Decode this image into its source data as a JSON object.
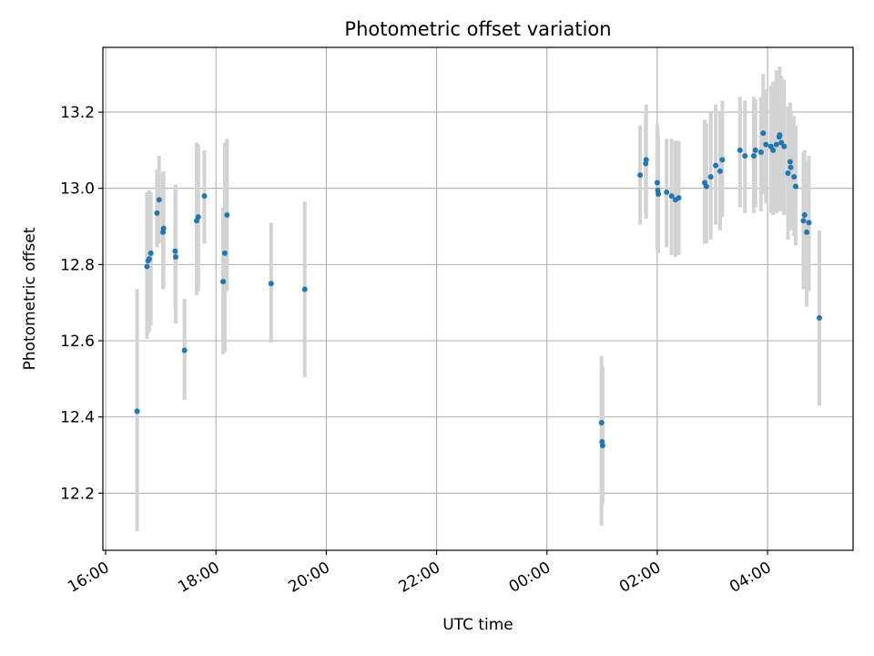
{
  "chart_data": {
    "type": "scatter",
    "title": "Photometric offset variation",
    "xlabel": "UTC time",
    "ylabel": "Photometric offset",
    "xlim_hours": [
      15.95,
      29.55
    ],
    "ylim": [
      12.05,
      13.37
    ],
    "grid": true,
    "legend": "none",
    "x_ticks": [
      {
        "hour": 16,
        "label": "16:00"
      },
      {
        "hour": 18,
        "label": "18:00"
      },
      {
        "hour": 20,
        "label": "20:00"
      },
      {
        "hour": 22,
        "label": "22:00"
      },
      {
        "hour": 24,
        "label": "00:00"
      },
      {
        "hour": 26,
        "label": "02:00"
      },
      {
        "hour": 28,
        "label": "04:00"
      }
    ],
    "y_ticks": [
      {
        "value": 12.2,
        "label": "12.2"
      },
      {
        "value": 12.4,
        "label": "12.4"
      },
      {
        "value": 12.6,
        "label": "12.6"
      },
      {
        "value": 12.8,
        "label": "12.8"
      },
      {
        "value": 13.0,
        "label": "13.0"
      },
      {
        "value": 13.2,
        "label": "13.2"
      }
    ],
    "series": [
      {
        "name": "Photometric offset",
        "marker_color": "#1f77b4",
        "errorbar_color": "#d3d3d3",
        "x_hours": [
          16.57,
          16.75,
          16.77,
          16.79,
          16.82,
          16.93,
          16.97,
          17.04,
          17.05,
          17.26,
          17.27,
          17.43,
          17.65,
          17.68,
          17.79,
          18.13,
          18.16,
          18.2,
          19.0,
          19.61,
          24.99,
          25.0,
          25.01,
          25.69,
          25.79,
          25.8,
          26.0,
          26.01,
          26.02,
          26.17,
          26.26,
          26.33,
          26.39,
          26.86,
          26.89,
          26.97,
          27.06,
          27.14,
          27.18,
          27.5,
          27.59,
          27.75,
          27.78,
          27.88,
          27.92,
          27.97,
          28.06,
          28.1,
          28.16,
          28.21,
          28.22,
          28.25,
          28.3,
          28.37,
          28.41,
          28.42,
          28.48,
          28.51,
          28.65,
          28.67,
          28.71,
          28.75,
          28.94
        ],
        "y_values": [
          12.415,
          12.795,
          12.81,
          12.815,
          12.83,
          12.935,
          12.97,
          12.885,
          12.895,
          12.835,
          12.82,
          12.575,
          12.915,
          12.925,
          12.98,
          12.755,
          12.83,
          12.93,
          12.75,
          12.735,
          12.385,
          12.335,
          12.325,
          13.035,
          13.065,
          13.075,
          13.015,
          12.995,
          12.985,
          12.99,
          12.98,
          12.97,
          12.975,
          13.015,
          13.005,
          13.03,
          13.06,
          13.045,
          13.075,
          13.1,
          13.085,
          13.085,
          13.1,
          13.095,
          13.145,
          13.115,
          13.11,
          13.1,
          13.115,
          13.135,
          13.14,
          13.12,
          13.11,
          13.04,
          13.07,
          13.055,
          13.03,
          13.005,
          12.915,
          12.93,
          12.885,
          12.91,
          12.66
        ],
        "y_err_low": [
          12.1,
          12.605,
          12.62,
          12.625,
          12.64,
          12.845,
          12.855,
          12.735,
          12.74,
          12.685,
          12.645,
          12.445,
          12.72,
          12.73,
          12.855,
          12.565,
          12.57,
          12.73,
          12.595,
          12.505,
          12.115,
          12.17,
          12.175,
          12.905,
          12.935,
          12.92,
          12.84,
          12.83,
          12.83,
          12.845,
          12.825,
          12.82,
          12.825,
          12.855,
          12.855,
          12.865,
          12.905,
          12.89,
          12.925,
          12.95,
          12.935,
          12.935,
          12.95,
          12.94,
          12.985,
          12.96,
          12.935,
          12.93,
          12.935,
          12.94,
          12.95,
          12.94,
          12.93,
          12.865,
          12.92,
          12.89,
          12.875,
          12.85,
          12.735,
          12.755,
          12.69,
          12.73,
          12.43
        ],
        "y_err_high": [
          12.735,
          12.99,
          12.98,
          12.995,
          12.99,
          13.05,
          13.085,
          13.04,
          13.045,
          13.005,
          13.01,
          12.71,
          13.12,
          13.115,
          13.1,
          12.95,
          13.12,
          13.13,
          12.91,
          12.965,
          12.56,
          12.535,
          12.53,
          13.165,
          13.19,
          13.22,
          13.17,
          13.16,
          13.135,
          13.13,
          13.13,
          13.125,
          13.125,
          13.18,
          13.17,
          13.2,
          13.22,
          13.2,
          13.23,
          13.24,
          13.23,
          13.24,
          13.235,
          13.24,
          13.3,
          13.26,
          13.27,
          13.28,
          13.31,
          13.3,
          13.32,
          13.295,
          13.285,
          13.215,
          13.225,
          13.205,
          13.19,
          13.165,
          13.095,
          13.1,
          13.07,
          13.085,
          12.89
        ]
      }
    ]
  }
}
